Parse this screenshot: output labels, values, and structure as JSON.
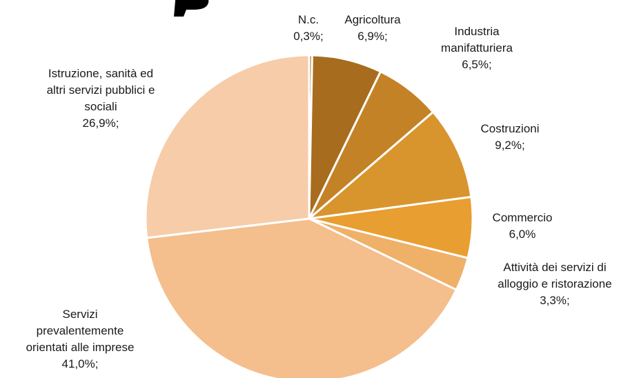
{
  "chart_data": {
    "type": "pie",
    "title": "",
    "start_angle_deg": 0,
    "direction": "clockwise",
    "slices": [
      {
        "name": "N.c.",
        "value": 0.3,
        "value_label": "0,3%;",
        "color": "#B5812E"
      },
      {
        "name": "Agricoltura",
        "value": 6.9,
        "value_label": "6,9%;",
        "color": "#A86C1E"
      },
      {
        "name": "Industria manifatturiera",
        "value": 6.5,
        "value_label": "6,5%;",
        "color": "#C48226"
      },
      {
        "name": "Costruzioni",
        "value": 9.2,
        "value_label": "9,2%;",
        "color": "#D8952E"
      },
      {
        "name": "Commercio",
        "value": 6.0,
        "value_label": "6,0%",
        "color": "#E89E31"
      },
      {
        "name": "Attività dei servizi di alloggio e ristorazione",
        "value": 3.3,
        "value_label": "3,3%;",
        "color": "#EFB068"
      },
      {
        "name": "Servizi prevalentemente orientati alle imprese",
        "value": 41.0,
        "value_label": "41,0%;",
        "color": "#F4BE8D"
      },
      {
        "name": "Istruzione, sanità ed altri servizi pubblici e sociali",
        "value": 26.9,
        "value_label": "26,9%;",
        "color": "#F6CCA9"
      }
    ],
    "labels": [
      {
        "lines": [
          "N.c.",
          "0,3%;"
        ]
      },
      {
        "lines": [
          "Agricoltura",
          "6,9%;"
        ]
      },
      {
        "lines": [
          "Industria",
          "manifatturiera",
          "6,5%;"
        ]
      },
      {
        "lines": [
          "Costruzioni",
          "9,2%;"
        ]
      },
      {
        "lines": [
          "Commercio",
          "6,0%"
        ]
      },
      {
        "lines": [
          "Attività dei servizi di",
          "alloggio e ristorazione",
          "3,3%;"
        ]
      },
      {
        "lines": [
          "Servizi",
          "prevalentemente",
          "orientati alle imprese",
          "41,0%;"
        ]
      },
      {
        "lines": [
          "Istruzione, sanità ed",
          "altri servizi pubblici e",
          "sociali",
          "26,9%;"
        ]
      }
    ]
  }
}
